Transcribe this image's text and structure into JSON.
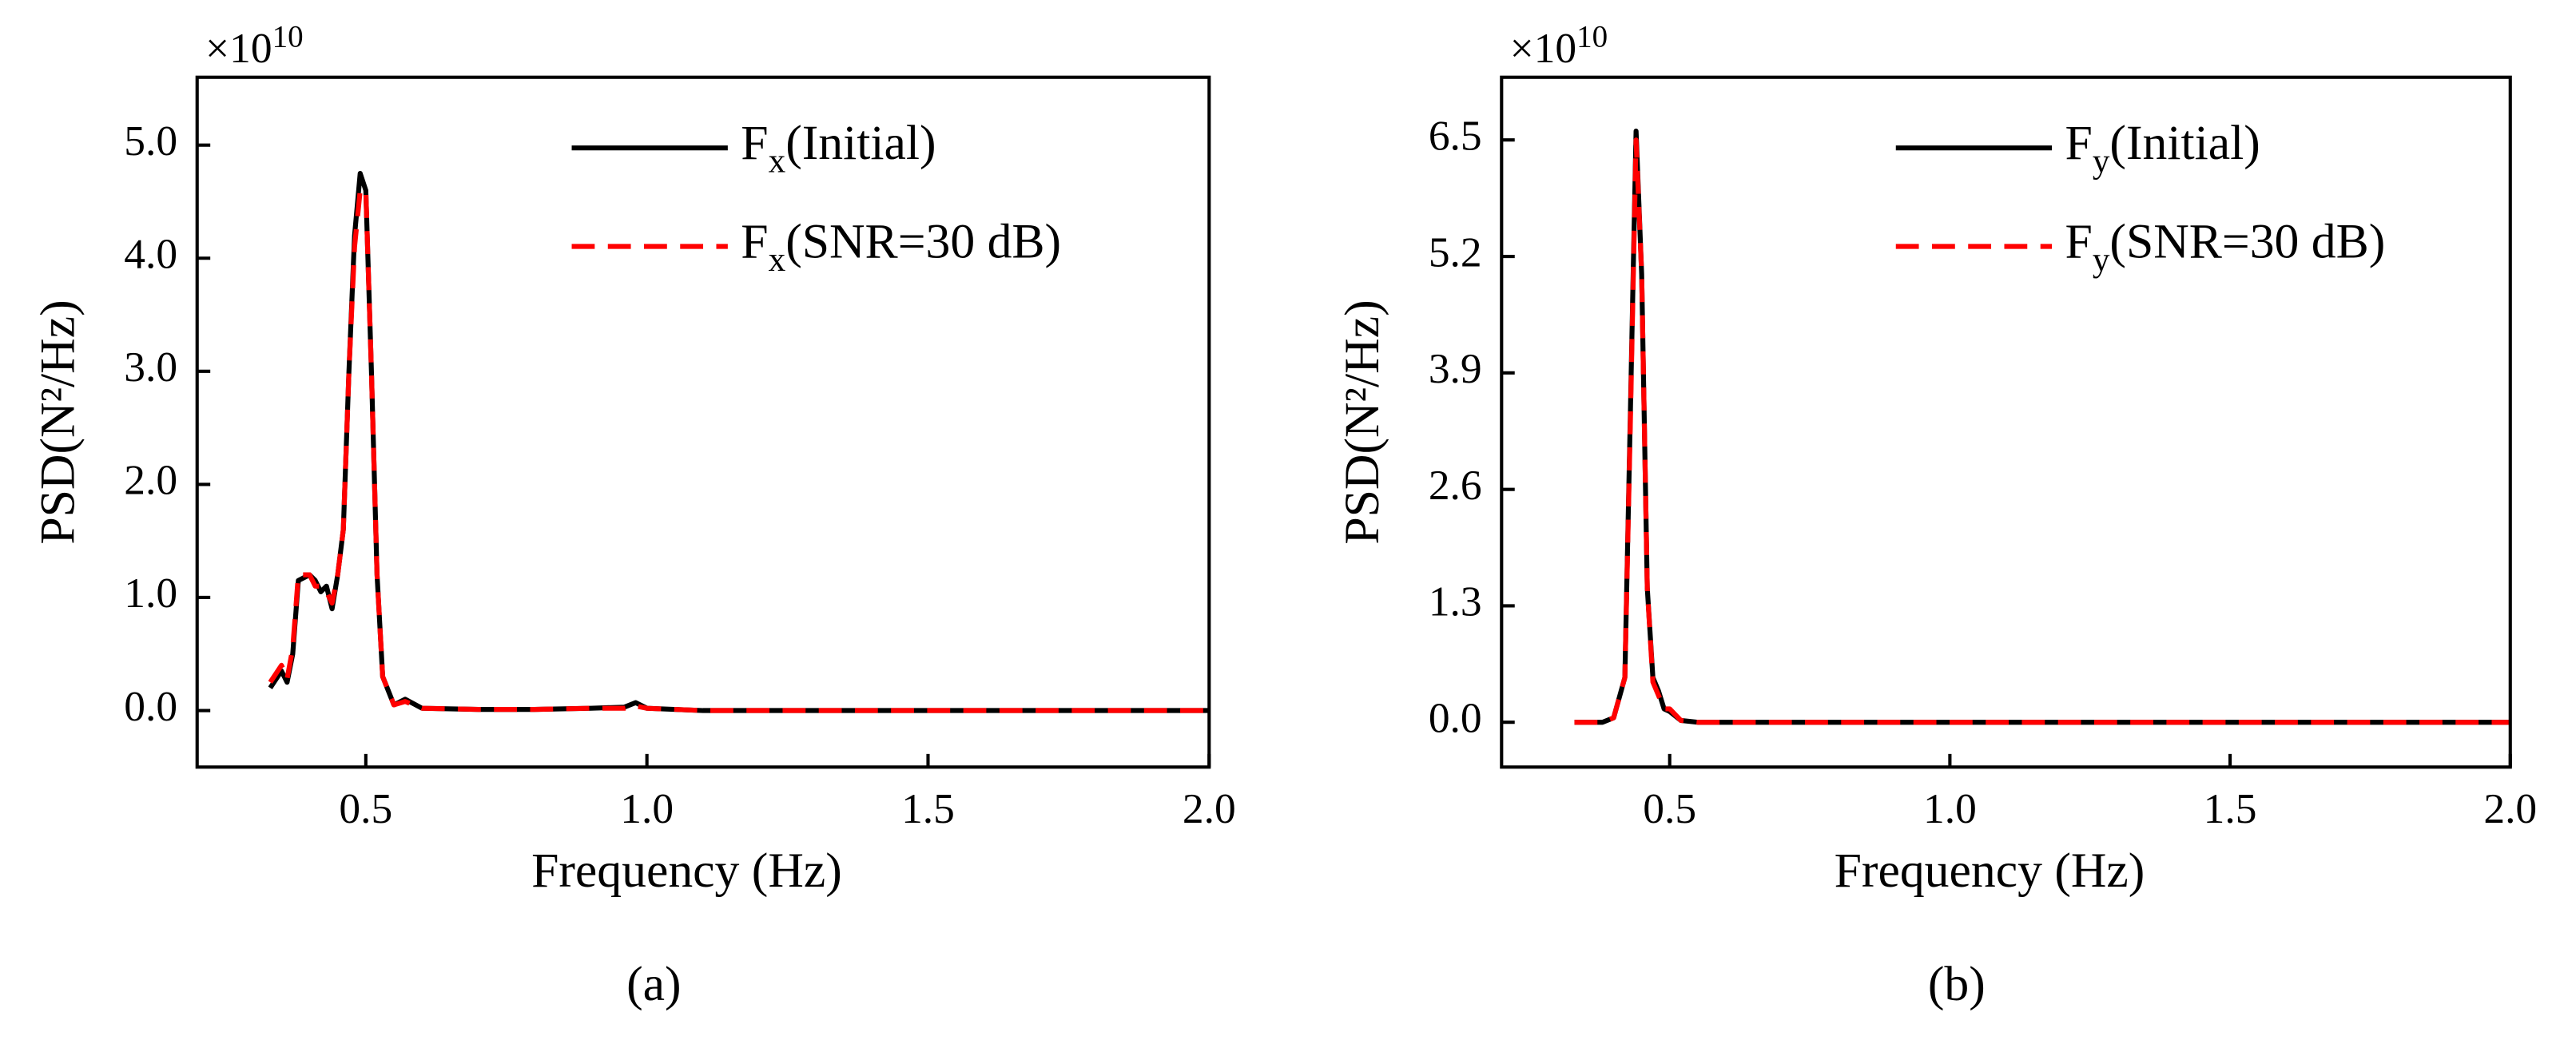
{
  "chart_data": [
    {
      "type": "line",
      "panel_label": "(a)",
      "xlabel": "Frequency (Hz)",
      "ylabel": "PSD(N²/Hz)",
      "multiplier": "×10",
      "multiplier_exp": "10",
      "x": [
        0.33,
        0.35,
        0.36,
        0.37,
        0.38,
        0.4,
        0.41,
        0.42,
        0.43,
        0.44,
        0.45,
        0.46,
        0.47,
        0.48,
        0.49,
        0.5,
        0.51,
        0.52,
        0.53,
        0.55,
        0.57,
        0.6,
        0.7,
        0.8,
        0.9,
        0.96,
        0.98,
        1.0,
        1.1,
        1.5,
        2.0
      ],
      "series": [
        {
          "name": [
            "F",
            "x",
            "(Initial)"
          ],
          "color": "#000000",
          "dash": false,
          "values": [
            0.2,
            0.35,
            0.25,
            0.5,
            1.15,
            1.2,
            1.15,
            1.05,
            1.1,
            0.9,
            1.2,
            1.6,
            3.0,
            4.2,
            4.75,
            4.6,
            3.0,
            1.2,
            0.3,
            0.05,
            0.1,
            0.02,
            0.01,
            0.01,
            0.02,
            0.03,
            0.07,
            0.02,
            0,
            0,
            0
          ]
        },
        {
          "name": [
            "F",
            "x",
            "(SNR=30 dB)"
          ],
          "color": "#ff0000",
          "dash": true,
          "values": [
            0.25,
            0.4,
            0.28,
            0.55,
            1.2,
            1.2,
            1.1,
            1.1,
            1.05,
            0.95,
            1.2,
            1.6,
            3.0,
            4.1,
            4.6,
            4.6,
            3.0,
            1.2,
            0.3,
            0.05,
            0.08,
            0.02,
            0.01,
            0.01,
            0.02,
            0.02,
            0.04,
            0.02,
            0,
            0,
            0
          ]
        }
      ],
      "xlim": [
        0.2,
        2.0
      ],
      "xticks": [
        0.5,
        {
          "value": 1.0,
          "label": "1.0"
        },
        1.5,
        {
          "value": 2.0,
          "label": "2.0"
        }
      ],
      "ylim": [
        -0.5,
        5.6
      ],
      "yticks": [
        {
          "value": 0,
          "label": "0.0"
        },
        {
          "value": 1,
          "label": "1.0"
        },
        {
          "value": 2,
          "label": "2.0"
        },
        {
          "value": 3,
          "label": "3.0"
        },
        {
          "value": 4,
          "label": "4.0"
        },
        {
          "value": 5,
          "label": "5.0"
        }
      ]
    },
    {
      "type": "line",
      "panel_label": "(b)",
      "xlabel": "Frequency (Hz)",
      "ylabel": "PSD(N²/Hz)",
      "multiplier": "×10",
      "multiplier_exp": "10",
      "x": [
        0.33,
        0.38,
        0.4,
        0.42,
        0.43,
        0.44,
        0.45,
        0.46,
        0.47,
        0.48,
        0.49,
        0.5,
        0.52,
        0.55,
        1.0,
        2.0
      ],
      "series": [
        {
          "name": [
            "F",
            "y",
            "(Initial)"
          ],
          "color": "#000000",
          "dash": false,
          "values": [
            0,
            0,
            0.05,
            0.5,
            3.5,
            6.6,
            5.0,
            1.5,
            0.5,
            0.35,
            0.15,
            0.12,
            0.02,
            0,
            0,
            0
          ]
        },
        {
          "name": [
            "F",
            "y",
            "(SNR=30 dB)"
          ],
          "color": "#ff0000",
          "dash": true,
          "values": [
            0,
            0,
            0.05,
            0.5,
            3.4,
            6.5,
            5.0,
            1.5,
            0.45,
            0.3,
            0.15,
            0.15,
            0.02,
            0,
            0,
            0
          ]
        }
      ],
      "xlim": [
        0.2,
        2.0
      ],
      "xticks": [
        0.5,
        {
          "value": 1.0,
          "label": "1.0"
        },
        1.5,
        {
          "value": 2.0,
          "label": "2.0"
        }
      ],
      "ylim": [
        -0.5,
        7.2
      ],
      "yticks": [
        {
          "value": 0,
          "label": "0.0"
        },
        1.3,
        2.6,
        3.9,
        5.2,
        6.5
      ]
    }
  ]
}
